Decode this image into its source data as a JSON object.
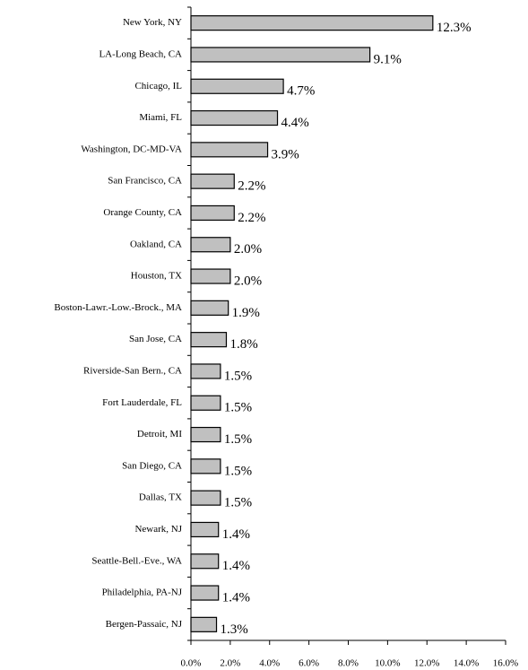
{
  "chart_data": {
    "type": "barh",
    "categories": [
      "New York, NY",
      "LA-Long Beach, CA",
      "Chicago, IL",
      "Miami, FL",
      "Washington, DC-MD-VA",
      "San Francisco, CA",
      "Orange County, CA",
      "Oakland, CA",
      "Houston, TX",
      "Boston-Lawr.-Low.-Brock., MA",
      "San Jose, CA",
      "Riverside-San Bern., CA",
      "Fort Lauderdale, FL",
      "Detroit, MI",
      "San Diego, CA",
      "Dallas, TX",
      "Newark, NJ",
      "Seattle-Bell.-Eve., WA",
      "Philadelphia, PA-NJ",
      "Bergen-Passaic, NJ"
    ],
    "values": [
      12.3,
      9.1,
      4.7,
      4.4,
      3.9,
      2.2,
      2.2,
      2.0,
      2.0,
      1.9,
      1.8,
      1.5,
      1.5,
      1.5,
      1.5,
      1.5,
      1.4,
      1.4,
      1.4,
      1.3
    ],
    "value_labels": [
      "12.3%",
      "9.1%",
      "4.7%",
      "4.4%",
      "3.9%",
      "2.2%",
      "2.2%",
      "2.0%",
      "2.0%",
      "1.9%",
      "1.8%",
      "1.5%",
      "1.5%",
      "1.5%",
      "1.5%",
      "1.5%",
      "1.4%",
      "1.4%",
      "1.4%",
      "1.3%"
    ],
    "color": "#c0c0c0",
    "xlim": [
      0,
      16
    ],
    "xticks": [
      {
        "value": 0,
        "label": "0.0%"
      },
      {
        "value": 2,
        "label": "2.0%"
      },
      {
        "value": 4,
        "label": "4.0%"
      },
      {
        "value": 6,
        "label": "6.0%"
      },
      {
        "value": 8,
        "label": "8.0%"
      },
      {
        "value": 10,
        "label": "10.0%"
      },
      {
        "value": 12,
        "label": "12.0%"
      },
      {
        "value": 14,
        "label": "14.0%"
      },
      {
        "value": 16,
        "label": "16.0%"
      }
    ],
    "grid": false
  }
}
